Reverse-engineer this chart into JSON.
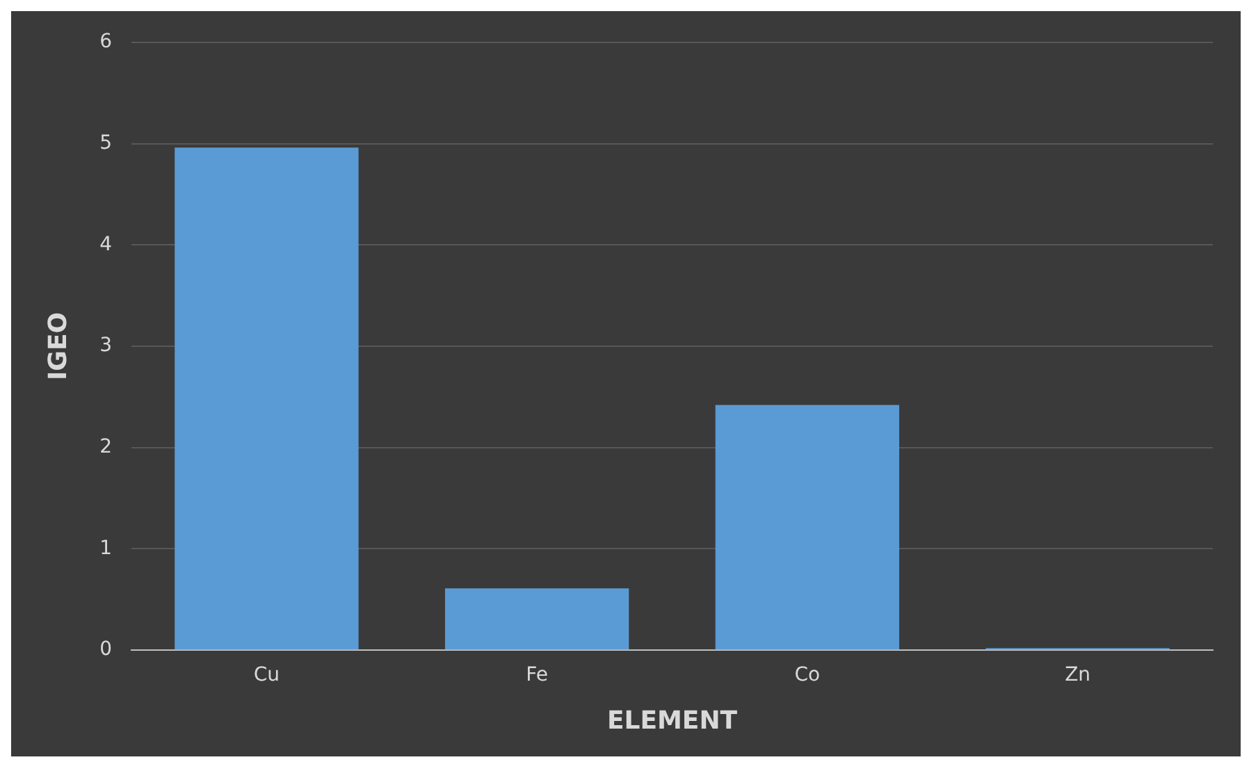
{
  "chart_data": {
    "type": "bar",
    "xlabel": "ELEMENT",
    "ylabel": "IGEO",
    "categories": [
      "Cu",
      "Fe",
      "Co",
      "Zn"
    ],
    "values": [
      4.96,
      0.61,
      2.42,
      0.02
    ],
    "color": "#5b9bd5",
    "ylim": [
      0,
      6
    ],
    "yticks": [
      0,
      1,
      2,
      3,
      4,
      5,
      6
    ],
    "grid": "y",
    "legend": false
  }
}
